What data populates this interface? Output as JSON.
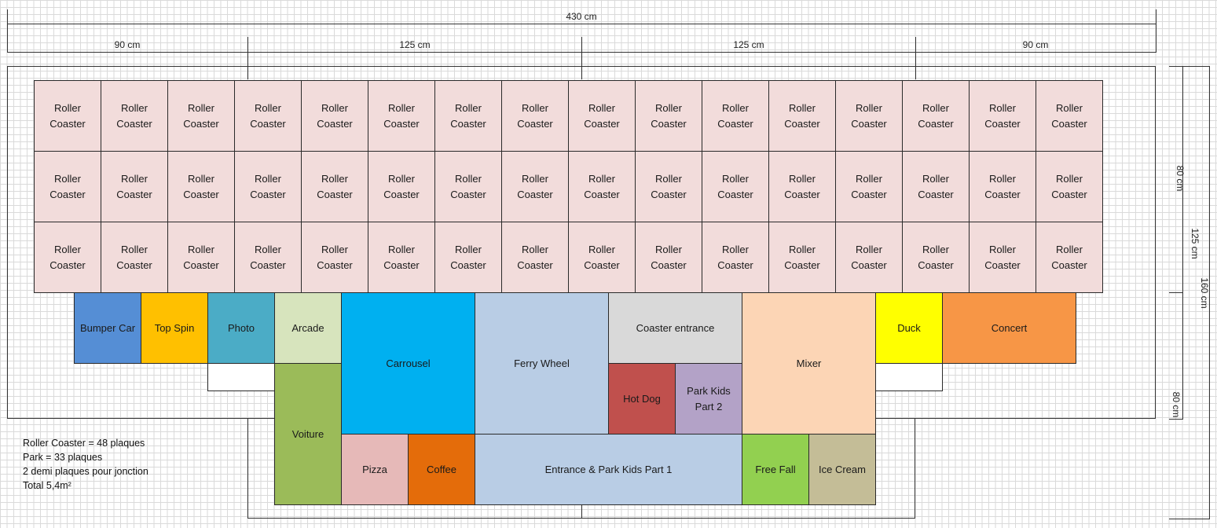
{
  "dimensions": {
    "total_width": "430 cm",
    "segments": [
      "90 cm",
      "125 cm",
      "125 cm",
      "90 cm"
    ],
    "right_80_top": "80 cm",
    "right_125": "125 cm",
    "right_160": "160 cm",
    "right_80_bottom": "80 cm"
  },
  "roller_coaster": {
    "label": "Roller Coaster",
    "rows": 3,
    "cols": 16,
    "color": "#f2dcdb"
  },
  "zones": {
    "bumper_car": {
      "label": "Bumper Car",
      "color": "#558ed5"
    },
    "top_spin": {
      "label": "Top Spin",
      "color": "#ffc000"
    },
    "photo": {
      "label": "Photo",
      "color": "#4bacc6"
    },
    "arcade": {
      "label": "Arcade",
      "color": "#d7e4bd"
    },
    "carrousel": {
      "label": "Carrousel",
      "color": "#00b0f0"
    },
    "ferry_wheel": {
      "label": "Ferry Wheel",
      "color": "#b9cde5"
    },
    "coaster_entrance": {
      "label": "Coaster entrance",
      "color": "#d9d9d9"
    },
    "mixer": {
      "label": "Mixer",
      "color": "#fcd5b5"
    },
    "duck": {
      "label": "Duck",
      "color": "#ffff00"
    },
    "concert": {
      "label": "Concert",
      "color": "#f79646"
    },
    "voiture": {
      "label": "Voiture",
      "color": "#9bbb59"
    },
    "hot_dog": {
      "label": "Hot Dog",
      "color": "#c0504d"
    },
    "park_kids_2": {
      "label": "Park Kids Part 2",
      "color": "#b3a2c7"
    },
    "pizza": {
      "label": "Pizza",
      "color": "#e6b9b8"
    },
    "coffee": {
      "label": "Coffee",
      "color": "#e46c0a"
    },
    "entrance_park_kids_1": {
      "label": "Entrance & Park Kids Part 1",
      "color": "#b9cde5"
    },
    "free_fall": {
      "label": "Free Fall",
      "color": "#92d050"
    },
    "ice_cream": {
      "label": "Ice Cream",
      "color": "#c4bd97"
    }
  },
  "notes": [
    "Roller Coaster = 48 plaques",
    "Park = 33 plaques",
    "2 demi plaques pour jonction",
    "Total 5,4m²"
  ]
}
